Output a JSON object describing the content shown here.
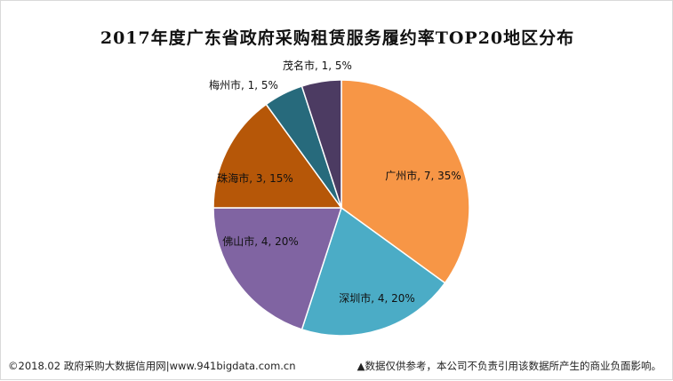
{
  "chart_data": {
    "type": "pie",
    "title": "2017年度广东省政府采购租赁服务履约率TOP20地区分布",
    "slices": [
      {
        "name": "广州市",
        "value": 7,
        "percent": "35%",
        "color": "#f79646",
        "label": "广州市, 7, 35%"
      },
      {
        "name": "深圳市",
        "value": 4,
        "percent": "20%",
        "color": "#4bacc6",
        "label": "深圳市, 4, 20%"
      },
      {
        "name": "佛山市",
        "value": 4,
        "percent": "20%",
        "color": "#8064a2",
        "label": "佛山市, 4, 20%"
      },
      {
        "name": "珠海市",
        "value": 3,
        "percent": "15%",
        "color": "#b65708",
        "label": "珠海市, 3, 15%"
      },
      {
        "name": "梅州市",
        "value": 1,
        "percent": "5%",
        "color": "#276a7c",
        "label": "梅州市, 1, 5%"
      },
      {
        "name": "茂名市",
        "value": 1,
        "percent": "5%",
        "color": "#4c3b62",
        "label": "茂名市, 1, 5%"
      }
    ],
    "legend": "none"
  },
  "footer": {
    "source": "©2018.02 政府采购大数据信用网|www.941bigdata.com.cn",
    "disclaimer": "▲数据仅供参考，本公司不负责引用该数据所产生的商业负面影响。"
  }
}
